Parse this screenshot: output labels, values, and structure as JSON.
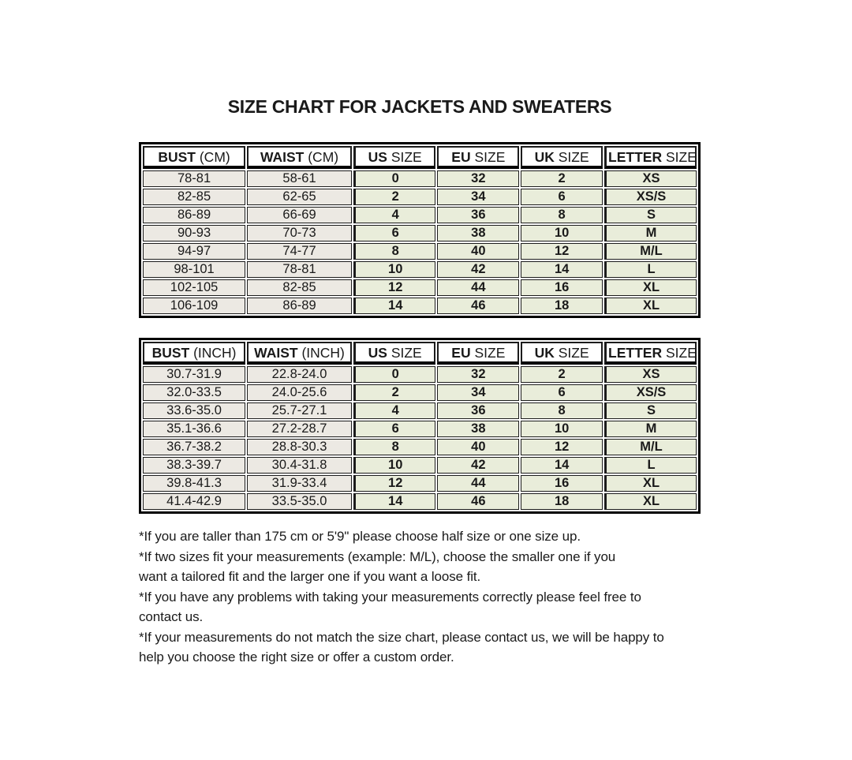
{
  "title": "SIZE CHART FOR JACKETS AND SWEATERS",
  "tables": [
    {
      "unit": "CM",
      "headers": [
        {
          "b": "BUST",
          "r": "(CM)"
        },
        {
          "b": "WAIST",
          "r": "(CM)"
        },
        {
          "b": "US",
          "r": "SIZE"
        },
        {
          "b": "EU",
          "r": "SIZE"
        },
        {
          "b": "UK",
          "r": "SIZE"
        },
        {
          "b": "LETTER",
          "r": "SIZE"
        }
      ],
      "rows": [
        [
          "78-81",
          "58-61",
          "0",
          "32",
          "2",
          "XS"
        ],
        [
          "82-85",
          "62-65",
          "2",
          "34",
          "6",
          "XS/S"
        ],
        [
          "86-89",
          "66-69",
          "4",
          "36",
          "8",
          "S"
        ],
        [
          "90-93",
          "70-73",
          "6",
          "38",
          "10",
          "M"
        ],
        [
          "94-97",
          "74-77",
          "8",
          "40",
          "12",
          "M/L"
        ],
        [
          "98-101",
          "78-81",
          "10",
          "42",
          "14",
          "L"
        ],
        [
          "102-105",
          "82-85",
          "12",
          "44",
          "16",
          "XL"
        ],
        [
          "106-109",
          "86-89",
          "14",
          "46",
          "18",
          "XL"
        ]
      ]
    },
    {
      "unit": "INCH",
      "headers": [
        {
          "b": "BUST",
          "r": "(INCH)"
        },
        {
          "b": "WAIST",
          "r": "(INCH)"
        },
        {
          "b": "US",
          "r": "SIZE"
        },
        {
          "b": "EU",
          "r": "SIZE"
        },
        {
          "b": "UK",
          "r": "SIZE"
        },
        {
          "b": "LETTER",
          "r": "SIZE"
        }
      ],
      "rows": [
        [
          "30.7-31.9",
          "22.8-24.0",
          "0",
          "32",
          "2",
          "XS"
        ],
        [
          "32.0-33.5",
          "24.0-25.6",
          "2",
          "34",
          "6",
          "XS/S"
        ],
        [
          "33.6-35.0",
          "25.7-27.1",
          "4",
          "36",
          "8",
          "S"
        ],
        [
          "35.1-36.6",
          "27.2-28.7",
          "6",
          "38",
          "10",
          "M"
        ],
        [
          "36.7-38.2",
          "28.8-30.3",
          "8",
          "40",
          "12",
          "M/L"
        ],
        [
          "38.3-39.7",
          "30.4-31.8",
          "10",
          "42",
          "14",
          "L"
        ],
        [
          "39.8-41.3",
          "31.9-33.4",
          "12",
          "44",
          "16",
          "XL"
        ],
        [
          "41.4-42.9",
          "33.5-35.0",
          "14",
          "46",
          "18",
          "XL"
        ]
      ]
    }
  ],
  "notes_lines": [
    "*If you are taller than 175 cm or 5'9\" please choose half size or one size up.",
    "*If two sizes fit your measurements (example: M/L), choose the smaller one if you",
    "want a tailored fit and the larger one if you want a loose fit.",
    "*If you have any problems with taking your measurements correctly please feel free to",
    "contact us.",
    "*If your measurements do not match the size chart, please contact us, we will be happy to",
    "help you choose the right size or offer a custom order."
  ],
  "colors": {
    "measure_cell_bg": "#ece9e3",
    "size_cell_bg": "#e9edda",
    "border": "#1c1c1c",
    "text": "#1a1a1a"
  }
}
